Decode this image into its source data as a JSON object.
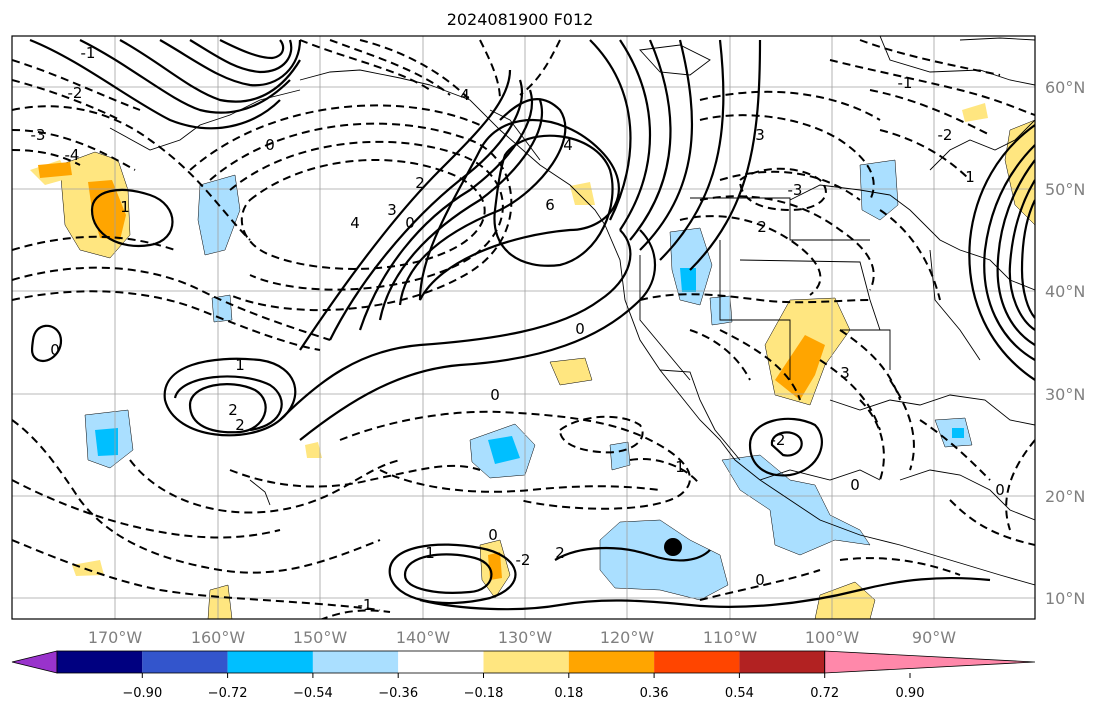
{
  "title": "2024081900 F012",
  "map": {
    "lon_labels": [
      "170°W",
      "160°W",
      "150°W",
      "140°W",
      "130°W",
      "120°W",
      "110°W",
      "100°W",
      "90°W"
    ],
    "lat_labels": [
      "60°N",
      "50°N",
      "40°N",
      "30°N",
      "20°N",
      "10°N"
    ],
    "contour_labels": [
      "1",
      "2",
      "4",
      "6",
      "0",
      "1",
      "2",
      "3",
      "4",
      "-1",
      "-2",
      "-3",
      "-4",
      "0",
      "0",
      "0",
      "1",
      "2",
      "0",
      "0",
      "0",
      "4",
      "3",
      "2",
      "-1",
      "-2",
      "1",
      "0",
      "-2",
      "0",
      "1",
      "-2",
      "3",
      "-3",
      "2",
      "-1"
    ],
    "marker": "black-dot"
  },
  "colorbar": {
    "ticks": [
      "−0.90",
      "−0.72",
      "−0.54",
      "−0.36",
      "−0.18",
      "0.18",
      "0.36",
      "0.54",
      "0.72",
      "0.90"
    ],
    "colors": [
      "#9933cc",
      "#000080",
      "#3355cc",
      "#00bfff",
      "#aadfff",
      "#ffffff",
      "#ffe680",
      "#ffa500",
      "#ff4500",
      "#b22222",
      "#ff88aa"
    ]
  }
}
